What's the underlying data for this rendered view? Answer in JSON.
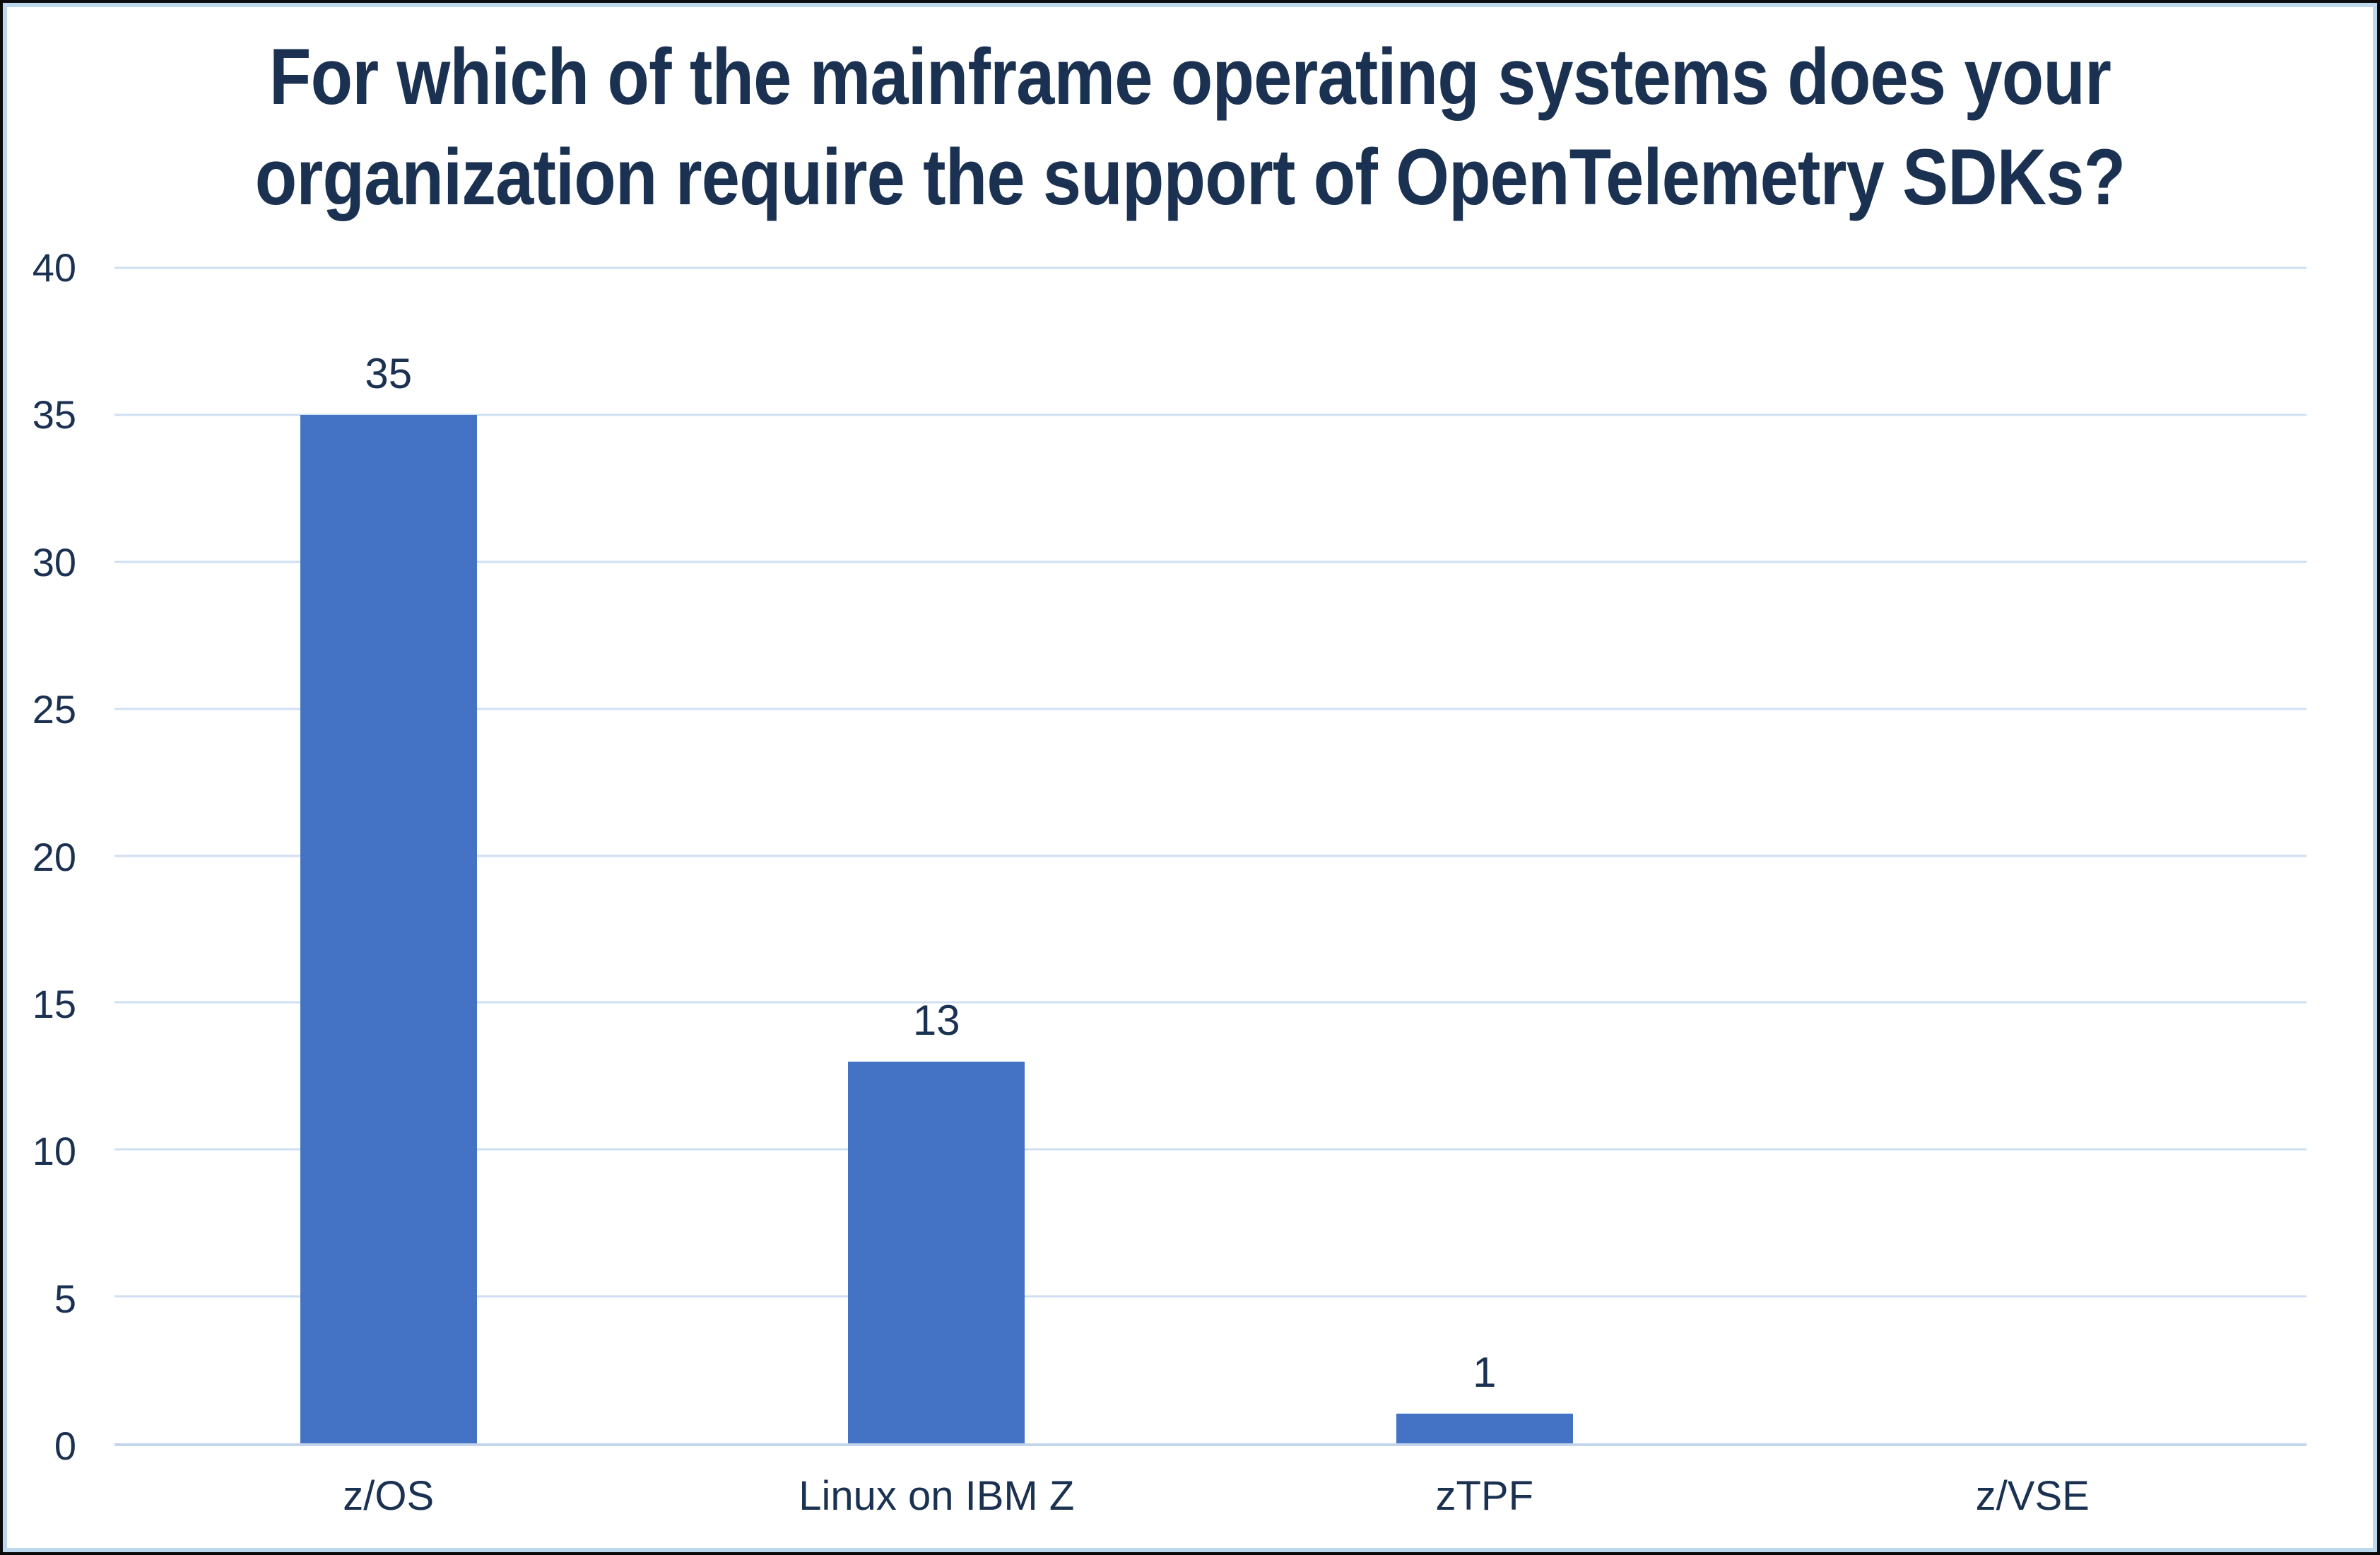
{
  "chart_data": {
    "type": "bar",
    "title": "For which of the mainframe operating systems does your organization require the support of OpenTelemetry SDKs?",
    "title_lines": [
      "For which of the mainframe operating systems does your",
      "organization require the support of OpenTelemetry SDKs?"
    ],
    "categories": [
      "z/OS",
      "Linux on IBM Z",
      "zTPF",
      "z/VSE"
    ],
    "values": [
      35,
      13,
      1,
      0
    ],
    "data_labels": [
      "35",
      "13",
      "1",
      ""
    ],
    "xlabel": "",
    "ylabel": "",
    "yticks": [
      0,
      5,
      10,
      15,
      20,
      25,
      30,
      35,
      40
    ],
    "ylim": [
      0,
      40
    ],
    "grid": true,
    "legend": false,
    "colors": {
      "bar": "#4472C4",
      "text": "#1B3151",
      "gridline": "#CFDFF3",
      "axis_line": "#C3D5EC",
      "inner_border": "#BDD7EE",
      "outer_border": "#0B0B0B",
      "background": "#FFFFFF"
    }
  }
}
